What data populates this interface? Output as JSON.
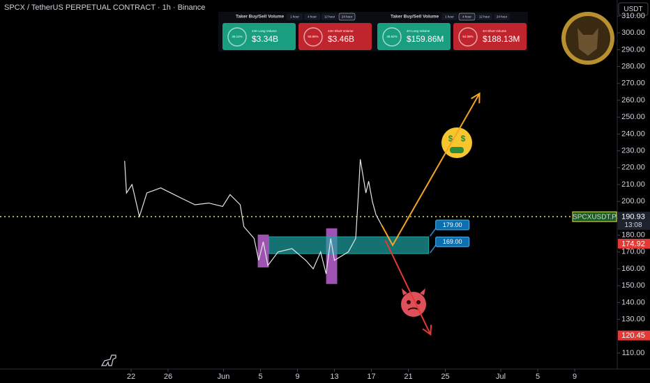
{
  "header": {
    "title": "SPCX / TetherUS PERPETUAL CONTRACT · 1h · Binance",
    "currency": "USDT"
  },
  "widgets": [
    {
      "title": "Taker Buy/Sell Volume",
      "tabs": [
        "1 hour",
        "4 hour",
        "12 hour",
        "24 hour"
      ],
      "active_tab": 3,
      "cards": [
        {
          "percent": "49.14%",
          "label": "24H Long Volume",
          "value": "$3.34B",
          "color": "#1a9e80"
        },
        {
          "percent": "50.86%",
          "label": "24H Short Volume",
          "value": "$3.46B",
          "color": "#c0252d"
        }
      ]
    },
    {
      "title": "Taker Buy/Sell Volume",
      "tabs": [
        "1 hour",
        "4 hour",
        "12 hour",
        "24 hour"
      ],
      "active_tab": 1,
      "cards": [
        {
          "percent": "45.92%",
          "label": "4H Long Volume",
          "value": "$159.86M",
          "color": "#1a9e80"
        },
        {
          "percent": "54.08%",
          "label": "4H Short Volume",
          "value": "$188.13M",
          "color": "#c0252d"
        }
      ]
    }
  ],
  "chart_data": {
    "type": "line",
    "series": [
      {
        "name": "SPCXUSDT.P",
        "color": "#e6e6e6",
        "x": [
          21.3,
          21.5,
          22.1,
          22.9,
          23.7,
          25.2,
          27.4,
          28.9,
          30.4,
          31.9,
          32.7,
          33.8,
          34.2,
          35.3,
          35.8,
          36.3,
          36.8,
          37.9,
          39.4,
          40.9,
          41.7,
          42.5,
          43.1,
          43.6,
          44.0,
          45.5,
          46.3,
          46.6,
          46.8,
          47.4,
          47.7,
          48.1,
          48.5,
          49.1
        ],
        "values": [
          224,
          205,
          210,
          191,
          205,
          208,
          202,
          198,
          199,
          197,
          204,
          198,
          185,
          178,
          165,
          176,
          162,
          170,
          172,
          165,
          160,
          170,
          157,
          178,
          165,
          170,
          178,
          205,
          225,
          205,
          212,
          200,
          192,
          186
        ]
      }
    ],
    "xlim": [
      7.81,
      74.6
    ],
    "xticks": [
      22,
      26,
      {
        "value": 32,
        "label": "Jun"
      },
      {
        "value": 36,
        "label": "5"
      },
      {
        "value": 40,
        "label": "9"
      },
      {
        "value": 44,
        "label": "13"
      },
      {
        "value": 48,
        "label": "17"
      },
      {
        "value": 52,
        "label": "21"
      },
      {
        "value": 56,
        "label": "25"
      },
      {
        "value": 62,
        "label": "Jul"
      },
      {
        "value": 66,
        "label": "5"
      },
      {
        "value": 70,
        "label": "9"
      }
    ],
    "ylim": [
      100.5,
      319.5
    ],
    "yticks": [
      {
        "value": 110,
        "label": "110.00"
      },
      {
        "value": 120,
        "label": "120.00"
      },
      {
        "value": 130,
        "label": "130.00"
      },
      {
        "value": 140,
        "label": "140.00"
      },
      {
        "value": 150,
        "label": "150.00"
      },
      {
        "value": 160,
        "label": "160.00"
      },
      {
        "value": 170,
        "label": "170.00"
      },
      {
        "value": 180,
        "label": "180.00"
      },
      {
        "value": 190,
        "label": "190.00"
      },
      {
        "value": 200,
        "label": "200.00"
      },
      {
        "value": 210,
        "label": "210.00"
      },
      {
        "value": 220,
        "label": "220.00"
      },
      {
        "value": 230,
        "label": "230.00"
      },
      {
        "value": 240,
        "label": "240.00"
      },
      {
        "value": 250,
        "label": "250.00"
      },
      {
        "value": 260,
        "label": "260.00"
      },
      {
        "value": 270,
        "label": "270.00"
      },
      {
        "value": 280,
        "label": "280.00"
      },
      {
        "value": 290,
        "label": "290.00"
      },
      {
        "value": 300,
        "label": "300.00"
      },
      {
        "value": 310,
        "label": "310.00"
      }
    ],
    "current_price": {
      "value": 190.93,
      "countdown": "13:08",
      "color": "#e8e84a"
    },
    "price_labels": [
      {
        "value": 174.92,
        "color": "#e53935"
      },
      {
        "value": 120.45,
        "color": "#e53935"
      }
    ],
    "zones": [
      {
        "x": [
          36.9,
          54.2
        ],
        "y": [
          169,
          179
        ],
        "color": "#1fa3a3"
      }
    ],
    "highlights": [
      {
        "x": [
          35.7,
          36.9
        ],
        "y": [
          160.8,
          180.3
        ],
        "color": "#b05cc4"
      },
      {
        "x": [
          43.1,
          44.3
        ],
        "y": [
          151,
          184
        ],
        "color": "#b05cc4"
      }
    ],
    "levels": [
      {
        "value": 179,
        "label": "179.00"
      },
      {
        "value": 169,
        "label": "169.00"
      }
    ],
    "arrows": [
      {
        "color": "#f5a623",
        "x": [
          49.1,
          50.3,
          59.7
        ],
        "y": [
          186,
          174,
          264
        ]
      },
      {
        "color": "#e53935",
        "x": [
          49.5,
          54.4
        ],
        "y": [
          177,
          121
        ]
      }
    ]
  }
}
